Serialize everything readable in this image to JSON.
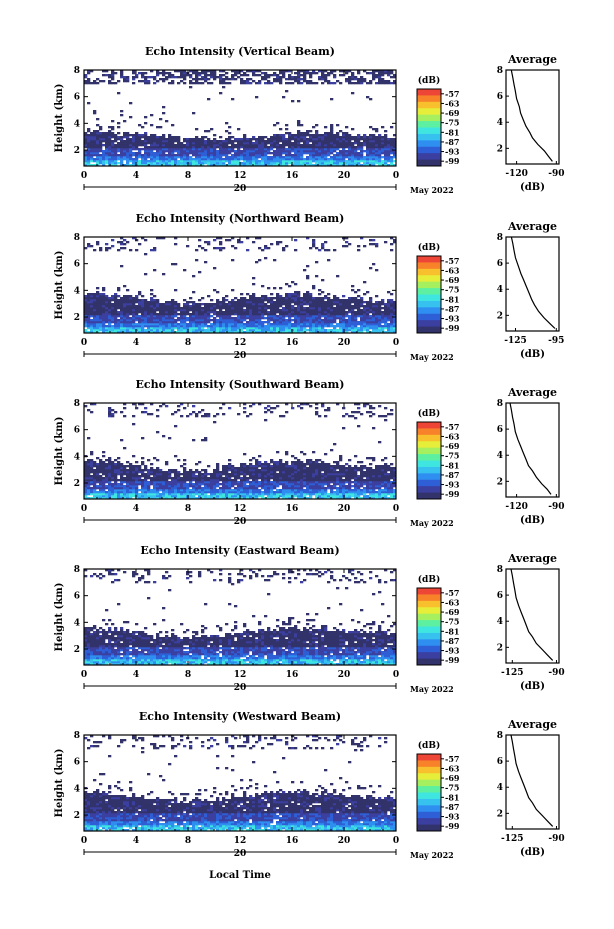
{
  "colors": {
    "scale": [
      "#33336b",
      "#3a3fa0",
      "#2f5fd6",
      "#2f8ff0",
      "#36c1ef",
      "#3fe6e0",
      "#5cf0a0",
      "#a6f060",
      "#e7ee3a",
      "#f7c02c",
      "#f7822a",
      "#ee4636"
    ]
  },
  "colorbar": {
    "unit": "(dB)",
    "ticks": [
      "-57",
      "-63",
      "-69",
      "-75",
      "-81",
      "-87",
      "-93",
      "-99"
    ]
  },
  "date_label": "May 2022",
  "shared_xlabel": "Local Time",
  "chart_data": [
    {
      "type": "heatmap",
      "title": "Echo Intensity (Vertical Beam)",
      "ylabel": "Height (km)",
      "xlabel": "Local Time",
      "x_ticks": [
        "0",
        "4",
        "8",
        "12",
        "16",
        "20",
        "0"
      ],
      "x_range": [
        0,
        24
      ],
      "y_ticks": [
        "2",
        "4",
        "6",
        "8"
      ],
      "y_range": [
        0.8,
        8.0
      ],
      "day_label": "20",
      "colorbar": {
        "min": -99,
        "max": -57,
        "unit": "dB"
      },
      "layer_top_km": [
        3.5,
        3.4,
        3.3,
        3.0,
        2.9,
        2.8,
        3.0,
        3.2,
        3.3,
        3.3,
        3.2,
        3.1,
        3.1
      ]
    },
    {
      "type": "line",
      "title": "Average",
      "xlabel": "(dB)",
      "x_ticks": [
        "-120",
        "-90"
      ],
      "y_ticks": [
        "2",
        "4",
        "6",
        "8"
      ],
      "xlim": [
        -128,
        -88
      ],
      "ylim": [
        0.8,
        8.0
      ],
      "x": [
        -93,
        -96,
        -99,
        -104,
        -108,
        -110,
        -113,
        -115,
        -117,
        -118,
        -120,
        -121,
        -122,
        -123,
        -124
      ],
      "y": [
        1.0,
        1.4,
        1.8,
        2.3,
        2.8,
        3.2,
        3.7,
        4.2,
        4.7,
        5.2,
        5.8,
        6.4,
        6.9,
        7.5,
        8.0
      ]
    },
    {
      "type": "heatmap",
      "title": "Echo Intensity (Northward Beam)",
      "ylabel": "Height (km)",
      "x_ticks": [
        "0",
        "4",
        "8",
        "12",
        "16",
        "20",
        "0"
      ],
      "x_range": [
        0,
        24
      ],
      "y_ticks": [
        "2",
        "4",
        "6",
        "8"
      ],
      "y_range": [
        0.8,
        8.0
      ],
      "day_label": "20",
      "colorbar": {
        "min": -99,
        "max": -57,
        "unit": "dB"
      },
      "layer_top_km": [
        3.9,
        3.7,
        3.5,
        3.2,
        3.1,
        3.2,
        3.4,
        3.6,
        3.8,
        3.7,
        3.5,
        3.3,
        3.2
      ]
    },
    {
      "type": "line",
      "title": "Average",
      "xlabel": "(dB)",
      "x_ticks": [
        "-125",
        "-95"
      ],
      "y_ticks": [
        "2",
        "4",
        "6",
        "8"
      ],
      "xlim": [
        -132,
        -93
      ],
      "ylim": [
        0.8,
        8.0
      ],
      "x": [
        -96,
        -100,
        -104,
        -108,
        -111,
        -113,
        -115,
        -117,
        -119,
        -121,
        -123,
        -125,
        -126,
        -127,
        -128
      ],
      "y": [
        1.0,
        1.4,
        1.8,
        2.3,
        2.8,
        3.2,
        3.7,
        4.2,
        4.7,
        5.2,
        5.8,
        6.4,
        6.9,
        7.5,
        8.0
      ]
    },
    {
      "type": "heatmap",
      "title": "Echo Intensity (Southward Beam)",
      "ylabel": "Height (km)",
      "x_ticks": [
        "0",
        "4",
        "8",
        "12",
        "16",
        "20",
        "0"
      ],
      "x_range": [
        0,
        24
      ],
      "y_ticks": [
        "2",
        "4",
        "6",
        "8"
      ],
      "y_range": [
        0.8,
        8.0
      ],
      "day_label": "20",
      "colorbar": {
        "min": -99,
        "max": -57,
        "unit": "dB"
      },
      "layer_top_km": [
        3.8,
        3.6,
        3.3,
        3.0,
        2.9,
        3.1,
        3.4,
        3.6,
        3.7,
        3.6,
        3.4,
        3.3,
        3.2
      ]
    },
    {
      "type": "line",
      "title": "Average",
      "xlabel": "(dB)",
      "x_ticks": [
        "-120",
        "-90"
      ],
      "y_ticks": [
        "2",
        "4",
        "6",
        "8"
      ],
      "xlim": [
        -128,
        -88
      ],
      "ylim": [
        0.8,
        8.0
      ],
      "x": [
        -94,
        -97,
        -101,
        -105,
        -108,
        -111,
        -113,
        -115,
        -117,
        -119,
        -121,
        -122,
        -123,
        -124,
        -125
      ],
      "y": [
        1.0,
        1.4,
        1.8,
        2.3,
        2.8,
        3.2,
        3.7,
        4.2,
        4.7,
        5.2,
        5.8,
        6.4,
        6.9,
        7.5,
        8.0
      ]
    },
    {
      "type": "heatmap",
      "title": "Echo Intensity (Eastward Beam)",
      "ylabel": "Height (km)",
      "x_ticks": [
        "0",
        "4",
        "8",
        "12",
        "16",
        "20",
        "0"
      ],
      "x_range": [
        0,
        24
      ],
      "y_ticks": [
        "2",
        "4",
        "6",
        "8"
      ],
      "y_range": [
        0.8,
        8.0
      ],
      "day_label": "20",
      "colorbar": {
        "min": -99,
        "max": -57,
        "unit": "dB"
      },
      "layer_top_km": [
        3.7,
        3.5,
        3.3,
        3.0,
        2.9,
        3.0,
        3.2,
        3.5,
        3.6,
        3.5,
        3.4,
        3.3,
        3.2
      ]
    },
    {
      "type": "line",
      "title": "Average",
      "xlabel": "(dB)",
      "x_ticks": [
        "-125",
        "-90"
      ],
      "y_ticks": [
        "2",
        "4",
        "6",
        "8"
      ],
      "xlim": [
        -130,
        -88
      ],
      "ylim": [
        0.8,
        8.0
      ],
      "x": [
        -93,
        -97,
        -101,
        -106,
        -109,
        -112,
        -114,
        -116,
        -118,
        -120,
        -122,
        -123,
        -124,
        -125,
        -126
      ],
      "y": [
        1.0,
        1.4,
        1.8,
        2.3,
        2.8,
        3.2,
        3.7,
        4.2,
        4.7,
        5.2,
        5.8,
        6.4,
        6.9,
        7.5,
        8.0
      ]
    },
    {
      "type": "heatmap",
      "title": "Echo Intensity (Westward Beam)",
      "ylabel": "Height (km)",
      "x_ticks": [
        "0",
        "4",
        "8",
        "12",
        "16",
        "20",
        "0"
      ],
      "x_range": [
        0,
        24
      ],
      "y_ticks": [
        "2",
        "4",
        "6",
        "8"
      ],
      "y_range": [
        0.8,
        8.0
      ],
      "day_label": "20",
      "colorbar": {
        "min": -99,
        "max": -57,
        "unit": "dB"
      },
      "layer_top_km": [
        3.8,
        3.6,
        3.4,
        3.1,
        3.0,
        3.2,
        3.5,
        3.7,
        3.8,
        3.7,
        3.5,
        3.4,
        3.3
      ]
    },
    {
      "type": "line",
      "title": "Average",
      "xlabel": "(dB)",
      "x_ticks": [
        "-125",
        "-90"
      ],
      "y_ticks": [
        "2",
        "4",
        "6",
        "8"
      ],
      "xlim": [
        -130,
        -88
      ],
      "ylim": [
        0.8,
        8.0
      ],
      "x": [
        -93,
        -97,
        -101,
        -106,
        -109,
        -112,
        -114,
        -116,
        -118,
        -120,
        -122,
        -123,
        -124,
        -125,
        -126
      ],
      "y": [
        1.0,
        1.4,
        1.8,
        2.3,
        2.8,
        3.2,
        3.7,
        4.2,
        4.7,
        5.2,
        5.8,
        6.4,
        6.9,
        7.5,
        8.0
      ]
    }
  ]
}
